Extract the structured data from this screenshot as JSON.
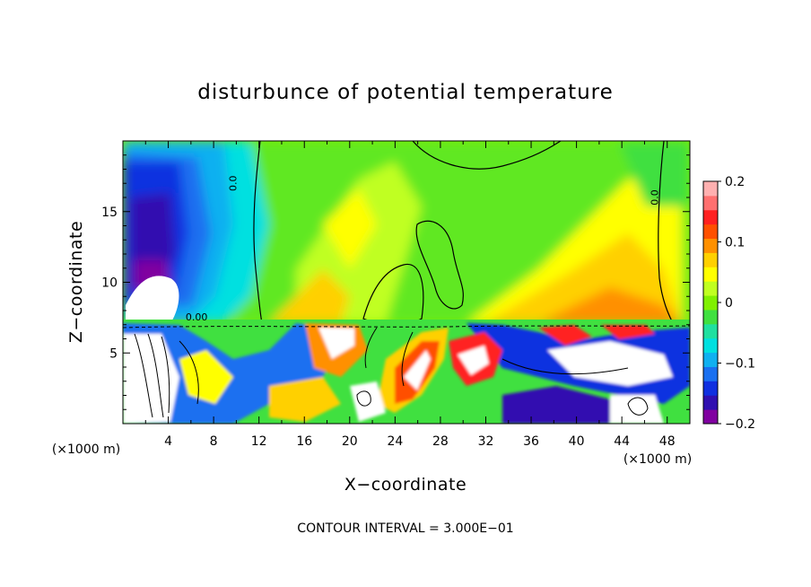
{
  "chart_data": {
    "type": "heatmap",
    "title": "disturbunce of potential temperature",
    "xlabel": "X−coordinate",
    "ylabel": "Z−coordinate",
    "x_unit": "(×1000 m)",
    "y_unit": "(×1000 m)",
    "xlim": [
      0,
      50
    ],
    "ylim": [
      0,
      20
    ],
    "x_ticks": [
      4,
      8,
      12,
      16,
      20,
      24,
      28,
      32,
      36,
      40,
      44,
      48
    ],
    "y_ticks": [
      5,
      10,
      15
    ],
    "colorbar": {
      "min": -0.2,
      "max": 0.2,
      "ticks": [
        {
          "value": 0.2,
          "label": "0.2"
        },
        {
          "value": 0.1,
          "label": "0.1"
        },
        {
          "value": 0,
          "label": "0"
        },
        {
          "value": -0.1,
          "label": "−0.1"
        },
        {
          "value": -0.2,
          "label": "−0.2"
        }
      ],
      "colors": [
        "#8000a0",
        "#3010b0",
        "#1030e0",
        "#1a70f0",
        "#10b0f0",
        "#00e0e0",
        "#20e0a0",
        "#40e040",
        "#80f000",
        "#c0ff20",
        "#ffff00",
        "#ffd000",
        "#ff9000",
        "#ff5000",
        "#ff2020",
        "#ff7070",
        "#ffb0b0"
      ]
    },
    "contour_labels": [
      {
        "text": "0.0",
        "x": 10.0,
        "z": 17.0,
        "rotate": -90
      },
      {
        "text": "0.0",
        "x": 47.2,
        "z": 16.0,
        "rotate": -90
      },
      {
        "text": "0.00",
        "x": 6.5,
        "z": 7.3,
        "rotate": 0
      }
    ],
    "annotation": "CONTOUR INTERVAL = 3.000E−01"
  }
}
